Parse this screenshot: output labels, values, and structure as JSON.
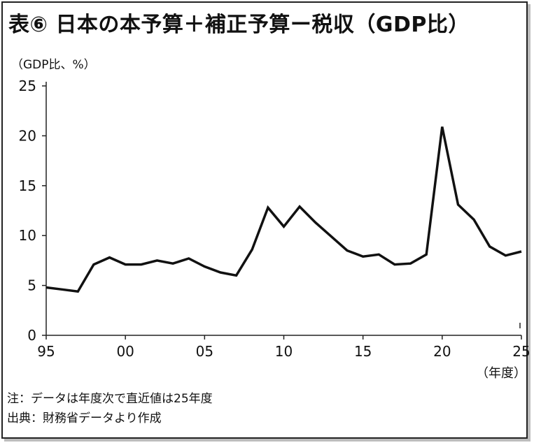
{
  "title": "表⑥ 日本の本予算＋補正予算ー税収（GDP比）",
  "unit_label": "（GDP比、%）",
  "notes": [
    "注：データは年度次で直近値は25年度",
    "出典：財務省データより作成"
  ],
  "chart_data": {
    "type": "line",
    "title": "表⑥ 日本の本予算＋補正予算ー税収（GDP比）",
    "xlabel": "（年度）",
    "ylabel": "（GDP比、%）",
    "ylim": [
      0,
      25
    ],
    "xlim": [
      1995,
      2025
    ],
    "yticks": [
      0,
      5,
      10,
      15,
      20,
      25
    ],
    "xticks": [
      1995,
      2000,
      2005,
      2010,
      2015,
      2020,
      2025
    ],
    "xtick_labels": [
      "95",
      "00",
      "05",
      "10",
      "15",
      "20",
      "25"
    ],
    "grid": false,
    "series": [
      {
        "x": [
          1995,
          1996,
          1997,
          1998,
          1999,
          2000,
          2001,
          2002,
          2003,
          2004,
          2005,
          2006,
          2007,
          2008,
          2009,
          2010,
          2011,
          2012,
          2013,
          2014,
          2015,
          2016,
          2017,
          2018,
          2019,
          2020,
          2021,
          2022,
          2023,
          2024,
          2025
        ],
        "values": [
          4.8,
          4.6,
          4.4,
          7.1,
          7.8,
          7.1,
          7.1,
          7.5,
          7.2,
          7.7,
          6.9,
          6.3,
          6.0,
          8.6,
          12.8,
          10.9,
          12.9,
          11.3,
          9.9,
          8.5,
          7.9,
          8.1,
          7.1,
          7.2,
          8.1,
          20.9,
          13.1,
          11.6,
          8.9,
          8.0,
          8.4
        ]
      }
    ]
  }
}
